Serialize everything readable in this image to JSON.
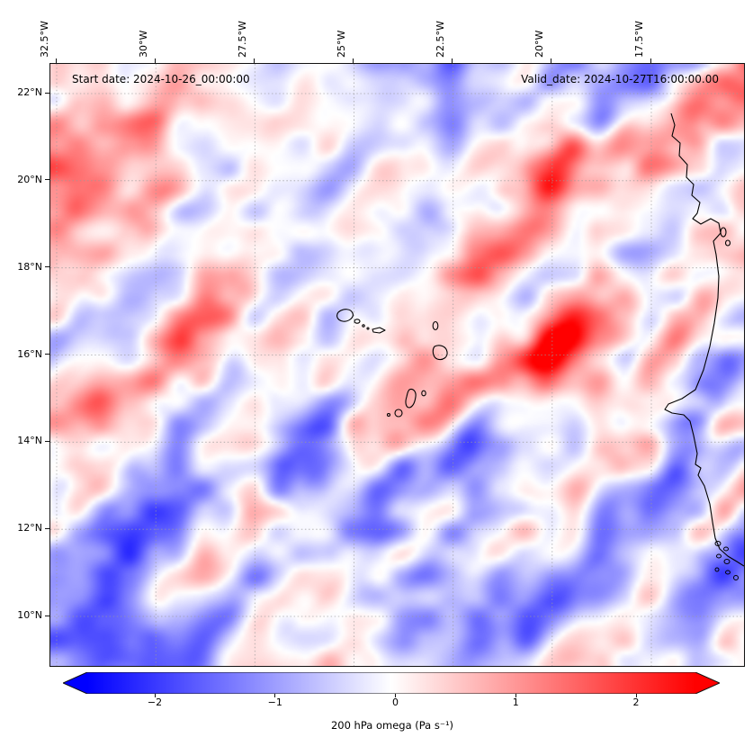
{
  "figure": {
    "start_date_label": "Start date: 2024-10-26_00:00:00",
    "valid_date_label": "Valid_date: 2024-10-27T16:00:00.00"
  },
  "axes": {
    "top_ticks": [
      "32.5°W",
      "30°W",
      "27.5°W",
      "25°W",
      "22.5°W",
      "20°W",
      "17.5°W"
    ],
    "left_ticks": [
      "22°N",
      "20°N",
      "18°N",
      "16°N",
      "14°N",
      "12°N",
      "10°N"
    ]
  },
  "colorbar": {
    "ticks": [
      "−2",
      "−1",
      "0",
      "1",
      "2"
    ],
    "label": "200 hPa omega (Pa s⁻¹)",
    "colors": {
      "negative": "#0000ff",
      "zero": "#ffffff",
      "positive": "#ff0000"
    }
  },
  "chart_data": {
    "type": "heatmap",
    "title": "",
    "field_name": "200 hPa omega",
    "units": "Pa s⁻¹",
    "colormap": "blue-white-red (bwr)",
    "colorbar_ticks": [
      -2,
      -1,
      0,
      1,
      2
    ],
    "colorbar_range_approx": [
      -2.5,
      2.5
    ],
    "colorbar_extended_both_ends": true,
    "x_axis": {
      "label": "",
      "side": "top",
      "tick_rotation_deg": 90,
      "ticks": [
        "32.5°W",
        "30°W",
        "27.5°W",
        "25°W",
        "22.5°W",
        "20°W",
        "17.5°W"
      ]
    },
    "y_axis": {
      "label": "",
      "side": "left",
      "ticks": [
        "22°N",
        "20°N",
        "18°N",
        "16°N",
        "14°N",
        "12°N",
        "10°N"
      ]
    },
    "annotations": [
      "Start date: 2024-10-26_00:00:00",
      "Valid_date: 2024-10-27T16:00:00.00"
    ],
    "grid": "dashed graticule at labeled meridians and parallels",
    "map_features": [
      "West African coastline (Western Sahara to Guinea-Bissau)",
      "Cape Verde islands",
      "Banc d'Arguin islets",
      "Bissagos islets"
    ],
    "field_description": "Mostly weak omega values near 0 (pale shades); elongated SW–NE oriented bands of weak ascent (blue) and descent (red) scattered across the whole domain, slightly stronger streaks in the upper half and along the bottom edge"
  }
}
